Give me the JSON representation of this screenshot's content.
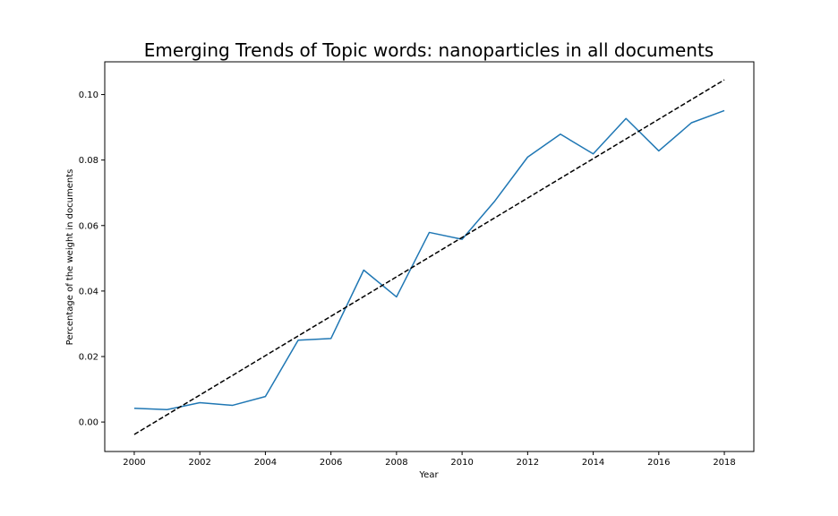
{
  "chart_data": {
    "type": "line",
    "title": "Emerging Trends of Topic words: nanoparticles in all documents",
    "xlabel": "Year",
    "ylabel": "Percentage of the weight in documents",
    "xlim": [
      1999.1,
      2018.9
    ],
    "ylim": [
      -0.009,
      0.11
    ],
    "xticks": [
      2000,
      2002,
      2004,
      2006,
      2008,
      2010,
      2012,
      2014,
      2016,
      2018
    ],
    "xtick_labels": [
      "2000",
      "2002",
      "2004",
      "2006",
      "2008",
      "2010",
      "2012",
      "2014",
      "2016",
      "2018"
    ],
    "yticks": [
      0.0,
      0.02,
      0.04,
      0.06,
      0.08,
      0.1
    ],
    "ytick_labels": [
      "0.00",
      "0.02",
      "0.04",
      "0.06",
      "0.08",
      "0.10"
    ],
    "grid": false,
    "series": [
      {
        "style": "solid",
        "color": "#1f77b4",
        "x": [
          2000,
          2001,
          2002,
          2003,
          2004,
          2005,
          2006,
          2007,
          2008,
          2009,
          2010,
          2011,
          2012,
          2013,
          2014,
          2015,
          2016,
          2017,
          2018
        ],
        "values": [
          0.0042,
          0.0038,
          0.0059,
          0.0051,
          0.0078,
          0.025,
          0.0255,
          0.0464,
          0.0382,
          0.0579,
          0.0558,
          0.0675,
          0.0809,
          0.0879,
          0.0819,
          0.0927,
          0.0828,
          0.0914,
          0.0951
        ]
      },
      {
        "style": "dashed",
        "color": "#000000",
        "x": [
          2000,
          2018
        ],
        "values": [
          -0.0038,
          0.1045
        ]
      }
    ]
  }
}
